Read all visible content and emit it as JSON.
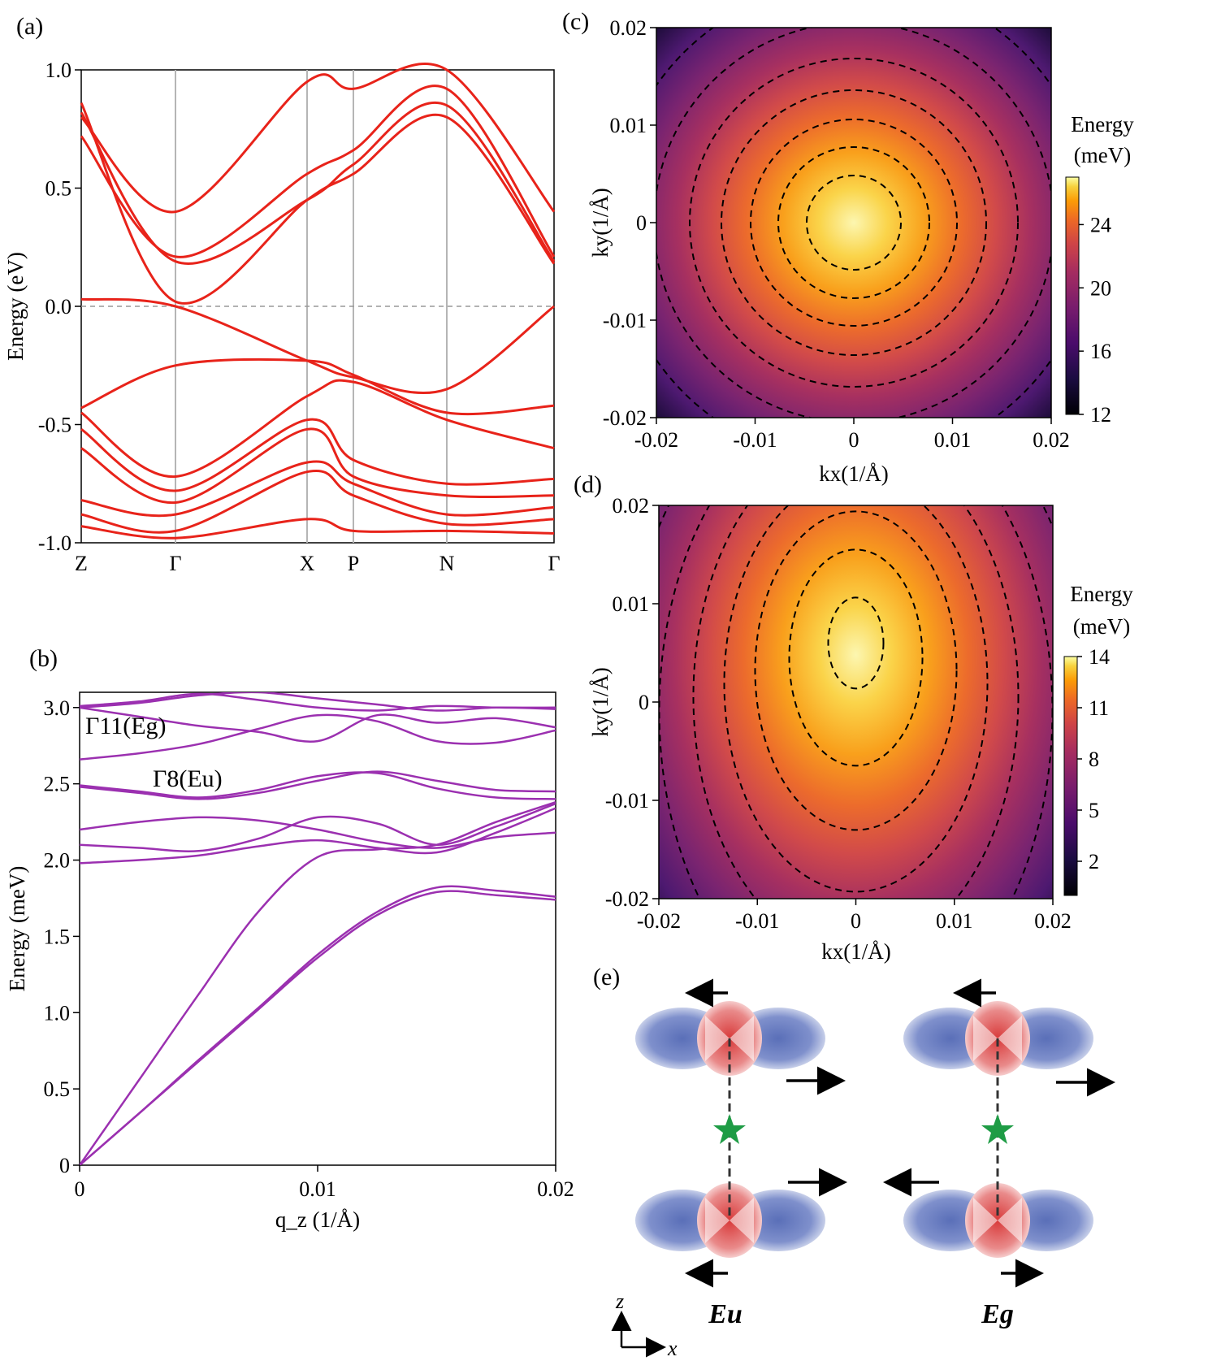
{
  "panels": {
    "a": {
      "label": "(a)"
    },
    "b": {
      "label": "(b)"
    },
    "c": {
      "label": "(c)"
    },
    "d": {
      "label": "(d)"
    },
    "e": {
      "label": "(e)"
    }
  },
  "chart_data": [
    {
      "id": "a",
      "type": "line",
      "ylabel": "Energy (eV)",
      "ylim": [
        -1.0,
        1.0
      ],
      "yticks": [
        "-1.0",
        "-0.5",
        "0.0",
        "0.5",
        "1.0"
      ],
      "xticks": [
        "Z",
        "Γ",
        "X",
        "P",
        "N",
        "Γ"
      ],
      "fermi_level": 0.0,
      "series_color": "#e8231a",
      "bands": [
        {
          "values": [
            0.8,
            0.4,
            0.95,
            0.92,
            1.0,
            0.4
          ]
        },
        {
          "values": [
            0.72,
            0.21,
            0.56,
            0.66,
            0.92,
            0.21
          ]
        },
        {
          "values": [
            0.82,
            0.19,
            0.45,
            0.6,
            0.85,
            0.19
          ]
        },
        {
          "values": [
            0.86,
            0.02,
            0.45,
            0.56,
            0.8,
            0.18
          ]
        },
        {
          "values": [
            0.03,
            0.0,
            -0.23,
            -0.3,
            -0.35,
            0.0
          ]
        },
        {
          "values": [
            -0.43,
            -0.25,
            -0.23,
            -0.29,
            -0.45,
            -0.42
          ]
        },
        {
          "values": [
            -0.45,
            -0.72,
            -0.38,
            -0.32,
            -0.48,
            -0.6
          ]
        },
        {
          "values": [
            -0.52,
            -0.78,
            -0.48,
            -0.65,
            -0.75,
            -0.73
          ]
        },
        {
          "values": [
            -0.6,
            -0.83,
            -0.52,
            -0.72,
            -0.8,
            -0.8
          ]
        },
        {
          "values": [
            -0.82,
            -0.88,
            -0.66,
            -0.75,
            -0.88,
            -0.85
          ]
        },
        {
          "values": [
            -0.88,
            -0.95,
            -0.7,
            -0.8,
            -0.92,
            -0.9
          ]
        },
        {
          "values": [
            -0.93,
            -0.98,
            -0.9,
            -0.95,
            -0.95,
            -0.96
          ]
        }
      ]
    },
    {
      "id": "b",
      "type": "line",
      "xlabel": "q_z (1/Å)",
      "ylabel": "Energy (meV)",
      "xlim": [
        0,
        0.02
      ],
      "ylim": [
        0,
        3.1
      ],
      "xticks": [
        "0",
        "0.01",
        "0.02"
      ],
      "yticks": [
        "0",
        "0.5",
        "1.0",
        "1.5",
        "2.0",
        "2.5",
        "3.0"
      ],
      "series_color": "#9b30b0",
      "x": [
        0,
        0.0025,
        0.005,
        0.0075,
        0.01,
        0.0125,
        0.015,
        0.0175,
        0.02
      ],
      "series": [
        {
          "values": [
            0.0,
            0.56,
            1.12,
            1.66,
            2.02,
            2.07,
            2.1,
            2.25,
            2.38
          ]
        },
        {
          "values": [
            0.0,
            0.34,
            0.68,
            1.02,
            1.36,
            1.64,
            1.79,
            1.77,
            1.74
          ]
        },
        {
          "values": [
            0.0,
            0.34,
            0.69,
            1.03,
            1.38,
            1.66,
            1.82,
            1.8,
            1.76
          ]
        },
        {
          "values": [
            1.98,
            2.0,
            2.03,
            2.09,
            2.13,
            2.08,
            2.05,
            2.18,
            2.34
          ]
        },
        {
          "values": [
            2.1,
            2.08,
            2.06,
            2.14,
            2.28,
            2.24,
            2.1,
            2.22,
            2.37
          ]
        },
        {
          "values": [
            2.2,
            2.25,
            2.28,
            2.26,
            2.2,
            2.12,
            2.08,
            2.15,
            2.18
          ]
        },
        {
          "values": [
            2.48,
            2.44,
            2.4,
            2.44,
            2.52,
            2.58,
            2.52,
            2.46,
            2.45
          ]
        },
        {
          "values": [
            2.49,
            2.45,
            2.41,
            2.46,
            2.55,
            2.57,
            2.47,
            2.41,
            2.4
          ]
        },
        {
          "values": [
            2.66,
            2.7,
            2.76,
            2.86,
            2.95,
            2.91,
            2.78,
            2.77,
            2.85
          ]
        },
        {
          "values": [
            3.0,
            2.94,
            2.88,
            2.84,
            2.78,
            2.95,
            2.9,
            2.93,
            2.87
          ]
        },
        {
          "values": [
            3.0,
            3.03,
            3.08,
            3.1,
            3.06,
            3.02,
            2.98,
            3.0,
            2.99
          ]
        },
        {
          "values": [
            3.01,
            3.04,
            3.09,
            3.05,
            3.0,
            2.98,
            3.01,
            3.0,
            3.0
          ]
        }
      ],
      "annotations": [
        {
          "text": "Γ11(Eg)"
        },
        {
          "text": "Γ8(Eu)"
        }
      ]
    },
    {
      "id": "c",
      "type": "heatmap",
      "xlabel": "kx(1/Å)",
      "ylabel": "ky(1/Å)",
      "xlim": [
        -0.02,
        0.02
      ],
      "ylim": [
        -0.02,
        0.02
      ],
      "xticks": [
        "-0.02",
        "-0.01",
        "0",
        "0.01",
        "0.02"
      ],
      "yticks": [
        "-0.02",
        "-0.01",
        "0",
        "0.01",
        "0.02"
      ],
      "colorbar_label_line1": "Energy",
      "colorbar_label_line2": "(meV)",
      "colorbar_range": [
        12,
        27
      ],
      "colorbar_ticks": [
        "12",
        "16",
        "20",
        "24"
      ],
      "colorbar_tick_values": [
        12,
        16,
        20,
        24
      ],
      "center": [
        0.0,
        0.0
      ],
      "contours": "dashed, concentric circles",
      "colormap": "inferno"
    },
    {
      "id": "d",
      "type": "heatmap",
      "xlabel": "kx(1/Å)",
      "ylabel": "ky(1/Å)",
      "xlim": [
        -0.02,
        0.02
      ],
      "ylim": [
        -0.02,
        0.02
      ],
      "xticks": [
        "-0.02",
        "-0.01",
        "0",
        "0.01",
        "0.02"
      ],
      "yticks": [
        "-0.02",
        "-0.01",
        "0",
        "0.01",
        "0.02"
      ],
      "colorbar_label_line1": "Energy",
      "colorbar_label_line2": "(meV)",
      "colorbar_range": [
        0,
        14
      ],
      "colorbar_ticks": [
        "2",
        "5",
        "8",
        "11",
        "14"
      ],
      "colorbar_tick_values": [
        2,
        5,
        8,
        11,
        14
      ],
      "center": [
        0.0,
        0.006
      ],
      "contours": "dashed, vertically elongated ellipses",
      "colormap": "inferno"
    }
  ],
  "schematic": {
    "modes": [
      "Eu",
      "Eg"
    ],
    "axes": {
      "vertical": "z",
      "horizontal": "x"
    },
    "orbital_colors": {
      "outer": "#5a6fb8",
      "inner": "#d83a3a"
    },
    "star_color": "#1e9c45"
  }
}
